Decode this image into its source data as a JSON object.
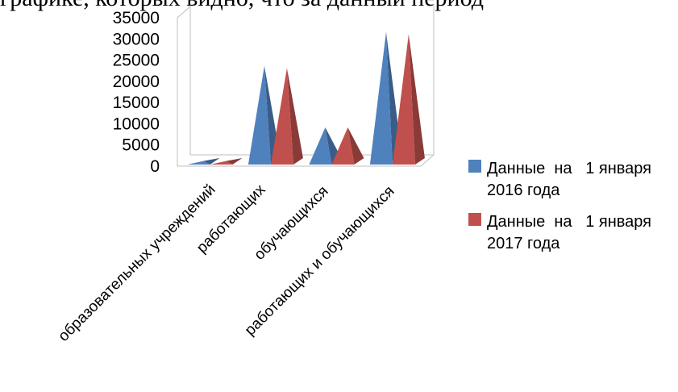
{
  "header_fragment": "графике, которых видно, что за данный период",
  "chart_data": {
    "type": "bar",
    "categories": [
      "образовательных учреждений",
      "работающих",
      "обучающихся",
      "работающих и обучающихся"
    ],
    "series": [
      {
        "name": "Данные  на   1 января 2016 года",
        "legend_lines": [
          "Данные  на   1 января",
          "2016 года"
        ],
        "color": "#4F81BD",
        "values": [
          80,
          22500,
          8000,
          30500
        ]
      },
      {
        "name": "Данные  на   1 января 2017 года",
        "legend_lines": [
          "Данные  на   1 января",
          "2017 года"
        ],
        "color": "#C0504D",
        "values": [
          80,
          22000,
          8000,
          30000
        ]
      }
    ],
    "ylim": [
      0,
      35000
    ],
    "yticks": [
      0,
      5000,
      10000,
      15000,
      20000,
      25000,
      30000,
      35000
    ],
    "legend_position": "right",
    "shape": "pyramid-3d"
  }
}
